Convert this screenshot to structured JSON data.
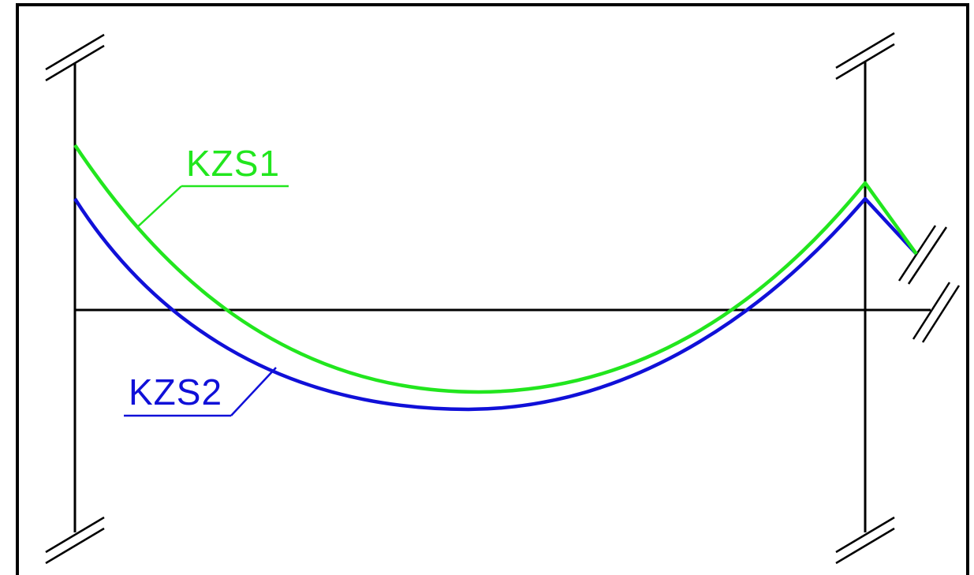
{
  "labels": {
    "kzs1": "KZS1",
    "kzs2": "KZS2"
  },
  "colors": {
    "background": "#ffffff",
    "structure": "#000000",
    "kzs1": "#22e61e",
    "kzs2": "#1010d8"
  }
}
